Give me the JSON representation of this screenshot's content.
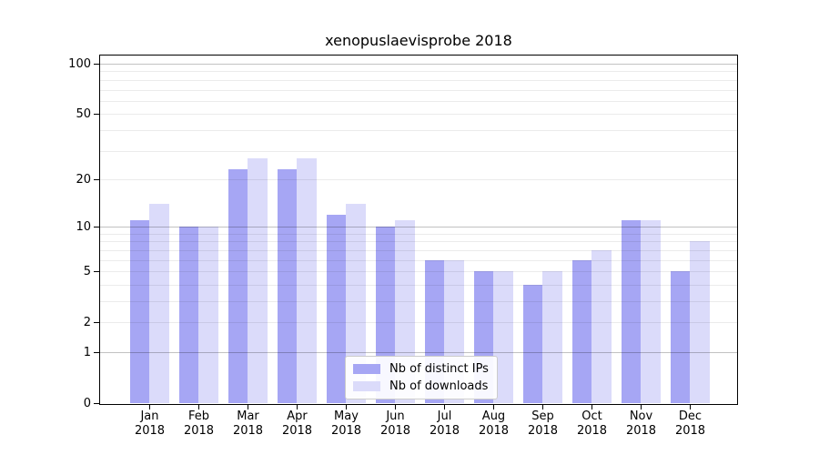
{
  "title": "xenopuslaevisprobe 2018",
  "chart_data": {
    "type": "bar",
    "title": "xenopuslaevisprobe 2018",
    "categories": [
      "Jan",
      "Feb",
      "Mar",
      "Apr",
      "May",
      "Jun",
      "Jul",
      "Aug",
      "Sep",
      "Oct",
      "Nov",
      "Dec"
    ],
    "category_year": "2018",
    "series": [
      {
        "name": "Nb of distinct IPs",
        "color": "#a6a6f4",
        "values": [
          11,
          10,
          23,
          23,
          12,
          10,
          6,
          5,
          4,
          6,
          11,
          5
        ]
      },
      {
        "name": "Nb of downloads",
        "color": "#dbdbfa",
        "values": [
          14,
          10,
          27,
          27,
          14,
          11,
          6,
          5,
          5,
          7,
          11,
          8
        ]
      }
    ],
    "xlabel": "",
    "ylabel": "",
    "yscale": "log1p",
    "ylim": [
      0,
      112
    ],
    "yticks": [
      0,
      1,
      2,
      5,
      10,
      20,
      50,
      100
    ],
    "grid": {
      "minor": [
        2,
        3,
        4,
        5,
        6,
        7,
        8,
        9,
        20,
        30,
        40,
        50,
        60,
        70,
        80,
        90
      ],
      "major": [
        1,
        10,
        100
      ]
    },
    "legend_position": "inside-bottom-center",
    "colors": {
      "grid_minor": "rgba(0,0,0,0.08)",
      "grid_major": "rgba(0,0,0,0.24)",
      "axis": "#000000",
      "background": "#ffffff"
    }
  }
}
